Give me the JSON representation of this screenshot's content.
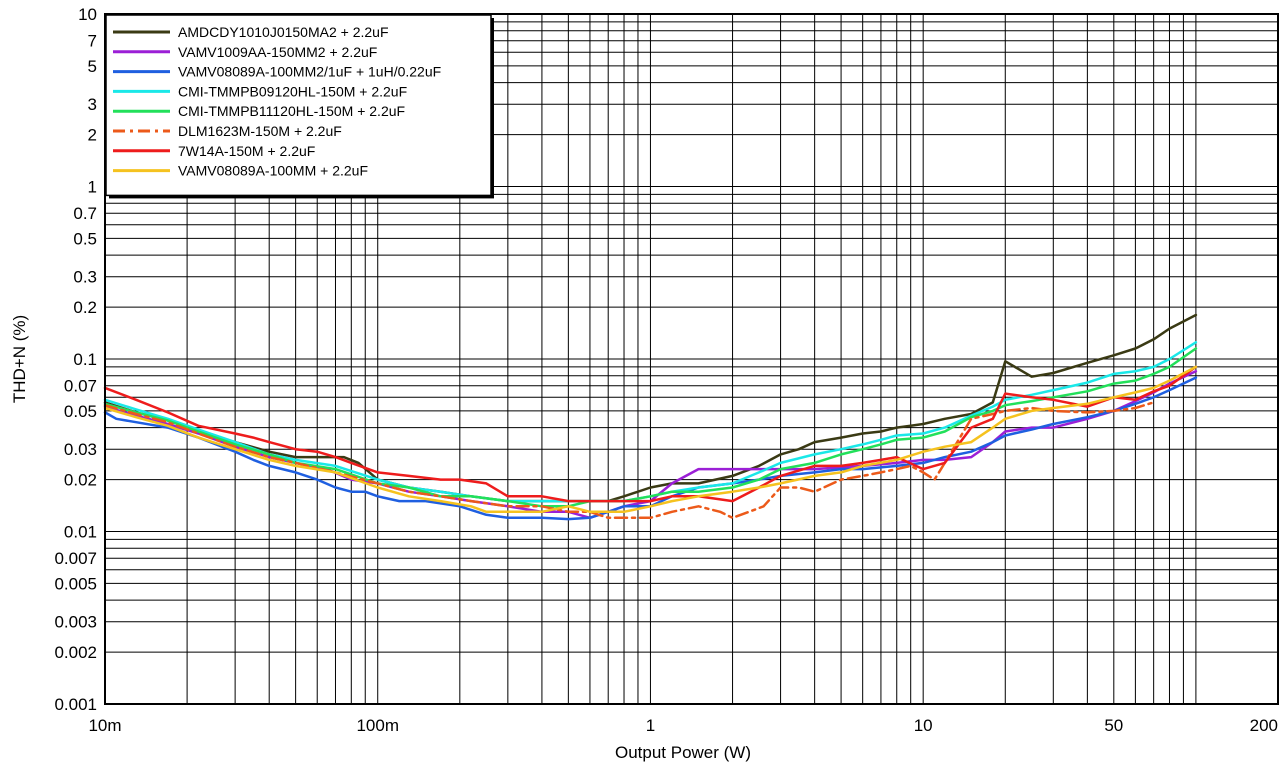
{
  "chart_data": {
    "type": "line",
    "title": "",
    "xlabel": "Output Power (W)",
    "ylabel": "THD+N (%)",
    "x_scale": "log",
    "y_scale": "log",
    "xlim": [
      0.01,
      200
    ],
    "ylim": [
      0.001,
      10
    ],
    "grid": true,
    "legend_position": "top-left",
    "x_ticks": [
      {
        "value": 0.01,
        "label": "10m"
      },
      {
        "value": 0.1,
        "label": "100m"
      },
      {
        "value": 1,
        "label": "1"
      },
      {
        "value": 10,
        "label": "10"
      },
      {
        "value": 50,
        "label": "50"
      },
      {
        "value": 200,
        "label": "200"
      }
    ],
    "y_ticks": [
      {
        "value": 0.001,
        "label": "0.001"
      },
      {
        "value": 0.002,
        "label": "0.002"
      },
      {
        "value": 0.003,
        "label": "0.003"
      },
      {
        "value": 0.005,
        "label": "0.005"
      },
      {
        "value": 0.007,
        "label": "0.007"
      },
      {
        "value": 0.01,
        "label": "0.01"
      },
      {
        "value": 0.02,
        "label": "0.02"
      },
      {
        "value": 0.03,
        "label": "0.03"
      },
      {
        "value": 0.05,
        "label": "0.05"
      },
      {
        "value": 0.07,
        "label": "0.07"
      },
      {
        "value": 0.1,
        "label": "0.1"
      },
      {
        "value": 0.2,
        "label": "0.2"
      },
      {
        "value": 0.3,
        "label": "0.3"
      },
      {
        "value": 0.5,
        "label": "0.5"
      },
      {
        "value": 0.7,
        "label": "0.7"
      },
      {
        "value": 1,
        "label": "1"
      },
      {
        "value": 2,
        "label": "2"
      },
      {
        "value": 3,
        "label": "3"
      },
      {
        "value": 5,
        "label": "5"
      },
      {
        "value": 7,
        "label": "7"
      },
      {
        "value": 10,
        "label": "10"
      }
    ],
    "series": [
      {
        "name": "AMDCDY1010J0150MA2 + 2.2uF",
        "color": "#3a3a14",
        "dash": "solid",
        "x": [
          0.01,
          0.013,
          0.017,
          0.022,
          0.03,
          0.04,
          0.05,
          0.065,
          0.075,
          0.085,
          0.1,
          0.13,
          0.17,
          0.22,
          0.3,
          0.4,
          0.5,
          0.6,
          0.7,
          0.8,
          1.0,
          1.2,
          1.5,
          2.0,
          2.5,
          3.0,
          3.5,
          4.0,
          5.0,
          6.0,
          7.0,
          8.0,
          9.0,
          10,
          12,
          15,
          18,
          20,
          25,
          30,
          40,
          50,
          60,
          70,
          80,
          100
        ],
        "y": [
          0.056,
          0.049,
          0.044,
          0.038,
          0.033,
          0.029,
          0.027,
          0.027,
          0.027,
          0.025,
          0.02,
          0.018,
          0.017,
          0.016,
          0.015,
          0.015,
          0.015,
          0.015,
          0.015,
          0.016,
          0.018,
          0.019,
          0.019,
          0.021,
          0.024,
          0.028,
          0.03,
          0.033,
          0.035,
          0.037,
          0.038,
          0.04,
          0.041,
          0.042,
          0.045,
          0.048,
          0.056,
          0.097,
          0.079,
          0.083,
          0.095,
          0.105,
          0.115,
          0.13,
          0.15,
          0.18
        ]
      },
      {
        "name": "VAMV1009AA-150MM2 + 2.2uF",
        "color": "#9b1fd6",
        "dash": "solid",
        "x": [
          0.01,
          0.013,
          0.017,
          0.022,
          0.03,
          0.04,
          0.05,
          0.065,
          0.08,
          0.1,
          0.13,
          0.17,
          0.22,
          0.3,
          0.4,
          0.5,
          0.6,
          0.7,
          0.8,
          1.0,
          1.2,
          1.5,
          2.0,
          3.0,
          4.0,
          6.0,
          8.0,
          10,
          12,
          15,
          18,
          20,
          25,
          30,
          40,
          50,
          60,
          70,
          80,
          100
        ],
        "y": [
          0.053,
          0.047,
          0.042,
          0.037,
          0.031,
          0.027,
          0.025,
          0.023,
          0.02,
          0.019,
          0.017,
          0.016,
          0.015,
          0.014,
          0.013,
          0.013,
          0.012,
          0.013,
          0.014,
          0.015,
          0.019,
          0.023,
          0.023,
          0.023,
          0.023,
          0.024,
          0.025,
          0.026,
          0.026,
          0.027,
          0.033,
          0.038,
          0.04,
          0.04,
          0.045,
          0.05,
          0.057,
          0.064,
          0.072,
          0.085
        ]
      },
      {
        "name": "VAMV08089A-100MM2/1uF + 1uH/0.22uF",
        "color": "#1f5fe0",
        "dash": "solid",
        "x": [
          0.01,
          0.011,
          0.013,
          0.017,
          0.022,
          0.03,
          0.035,
          0.04,
          0.05,
          0.06,
          0.07,
          0.08,
          0.09,
          0.1,
          0.12,
          0.15,
          0.2,
          0.25,
          0.3,
          0.35,
          0.4,
          0.5,
          0.6,
          0.7,
          0.8,
          1.0,
          1.2,
          1.5,
          2.0,
          2.5,
          3.0,
          4.0,
          5.0,
          6.0,
          8.0,
          10,
          12,
          15,
          18,
          20,
          25,
          30,
          40,
          50,
          60,
          70,
          80,
          100
        ],
        "y": [
          0.049,
          0.045,
          0.043,
          0.04,
          0.035,
          0.029,
          0.026,
          0.024,
          0.022,
          0.02,
          0.018,
          0.017,
          0.017,
          0.016,
          0.015,
          0.015,
          0.014,
          0.0125,
          0.012,
          0.012,
          0.012,
          0.0118,
          0.012,
          0.013,
          0.014,
          0.014,
          0.016,
          0.018,
          0.019,
          0.02,
          0.021,
          0.022,
          0.023,
          0.023,
          0.024,
          0.025,
          0.027,
          0.029,
          0.033,
          0.036,
          0.039,
          0.042,
          0.046,
          0.05,
          0.055,
          0.06,
          0.066,
          0.078
        ]
      },
      {
        "name": "CMI-TMMPB09120HL-150M + 2.2uF",
        "color": "#1ae8e8",
        "dash": "solid",
        "x": [
          0.01,
          0.013,
          0.017,
          0.022,
          0.03,
          0.04,
          0.05,
          0.07,
          0.1,
          0.13,
          0.17,
          0.22,
          0.3,
          0.4,
          0.5,
          0.6,
          0.7,
          0.8,
          1.0,
          1.2,
          1.5,
          2.0,
          2.5,
          3.0,
          4.0,
          5.0,
          6.0,
          7.0,
          8.0,
          10,
          12,
          15,
          18,
          20,
          25,
          30,
          40,
          50,
          60,
          70,
          80,
          100
        ],
        "y": [
          0.058,
          0.051,
          0.045,
          0.039,
          0.033,
          0.028,
          0.026,
          0.024,
          0.02,
          0.018,
          0.017,
          0.016,
          0.015,
          0.015,
          0.015,
          0.015,
          0.015,
          0.015,
          0.016,
          0.017,
          0.018,
          0.019,
          0.022,
          0.025,
          0.028,
          0.03,
          0.032,
          0.034,
          0.036,
          0.037,
          0.04,
          0.047,
          0.053,
          0.058,
          0.062,
          0.066,
          0.073,
          0.082,
          0.085,
          0.09,
          0.1,
          0.125
        ]
      },
      {
        "name": "CMI-TMMPB11120HL-150M + 2.2uF",
        "color": "#22e05a",
        "dash": "solid",
        "x": [
          0.01,
          0.013,
          0.017,
          0.022,
          0.03,
          0.04,
          0.05,
          0.07,
          0.1,
          0.13,
          0.17,
          0.22,
          0.3,
          0.4,
          0.5,
          0.6,
          0.7,
          0.8,
          1.0,
          1.2,
          1.5,
          2.0,
          2.5,
          3.0,
          4.0,
          5.0,
          6.0,
          7.0,
          8.0,
          10,
          12,
          15,
          18,
          20,
          25,
          30,
          40,
          50,
          60,
          70,
          80,
          100
        ],
        "y": [
          0.055,
          0.049,
          0.044,
          0.038,
          0.032,
          0.028,
          0.025,
          0.023,
          0.019,
          0.018,
          0.016,
          0.016,
          0.015,
          0.014,
          0.014,
          0.015,
          0.015,
          0.015,
          0.016,
          0.017,
          0.017,
          0.018,
          0.02,
          0.023,
          0.025,
          0.028,
          0.03,
          0.032,
          0.034,
          0.035,
          0.038,
          0.046,
          0.05,
          0.054,
          0.057,
          0.06,
          0.065,
          0.072,
          0.075,
          0.082,
          0.09,
          0.115
        ]
      },
      {
        "name": "DLM1623M-150M + 2.2uF",
        "color": "#ec5a1a",
        "dash": "dashdot",
        "x": [
          0.01,
          0.013,
          0.017,
          0.022,
          0.03,
          0.04,
          0.05,
          0.07,
          0.1,
          0.13,
          0.17,
          0.22,
          0.3,
          0.4,
          0.5,
          0.6,
          0.7,
          0.8,
          1.0,
          1.2,
          1.5,
          1.8,
          2.0,
          2.3,
          2.6,
          3.0,
          3.5,
          4.0,
          5.0,
          6.0,
          7.0,
          8.0,
          9.0,
          10,
          11,
          12,
          15,
          18,
          20,
          25,
          30,
          40,
          50,
          60,
          70
        ],
        "y": [
          0.054,
          0.048,
          0.043,
          0.037,
          0.031,
          0.027,
          0.025,
          0.022,
          0.019,
          0.017,
          0.016,
          0.015,
          0.014,
          0.014,
          0.013,
          0.013,
          0.012,
          0.012,
          0.012,
          0.013,
          0.014,
          0.013,
          0.012,
          0.013,
          0.014,
          0.018,
          0.018,
          0.017,
          0.02,
          0.021,
          0.022,
          0.023,
          0.024,
          0.022,
          0.02,
          0.025,
          0.045,
          0.048,
          0.05,
          0.052,
          0.05,
          0.049,
          0.05,
          0.052,
          0.056
        ]
      },
      {
        "name": "7W14A-150M + 2.2uF",
        "color": "#ee1c1c",
        "dash": "solid",
        "x": [
          0.01,
          0.013,
          0.017,
          0.022,
          0.03,
          0.035,
          0.04,
          0.05,
          0.06,
          0.07,
          0.08,
          0.1,
          0.13,
          0.17,
          0.2,
          0.25,
          0.3,
          0.4,
          0.5,
          0.6,
          0.7,
          0.8,
          1.0,
          1.2,
          1.5,
          2.0,
          2.5,
          3.0,
          4.0,
          5.0,
          6.0,
          7.0,
          8.0,
          10,
          12,
          15,
          18,
          20,
          25,
          30,
          40,
          50,
          60,
          70,
          80,
          100
        ],
        "y": [
          0.068,
          0.058,
          0.049,
          0.041,
          0.037,
          0.035,
          0.033,
          0.03,
          0.029,
          0.027,
          0.025,
          0.022,
          0.021,
          0.02,
          0.02,
          0.019,
          0.016,
          0.016,
          0.015,
          0.015,
          0.015,
          0.015,
          0.015,
          0.016,
          0.016,
          0.015,
          0.018,
          0.021,
          0.024,
          0.024,
          0.025,
          0.026,
          0.027,
          0.023,
          0.025,
          0.04,
          0.045,
          0.063,
          0.06,
          0.058,
          0.053,
          0.06,
          0.058,
          0.065,
          0.07,
          0.09
        ]
      },
      {
        "name": "VAMV08089A-100MM + 2.2uF",
        "color": "#f5c21f",
        "dash": "solid",
        "x": [
          0.01,
          0.013,
          0.017,
          0.022,
          0.03,
          0.04,
          0.05,
          0.07,
          0.1,
          0.13,
          0.17,
          0.22,
          0.25,
          0.3,
          0.4,
          0.5,
          0.6,
          0.7,
          0.8,
          1.0,
          1.2,
          1.5,
          2.0,
          2.5,
          3.0,
          4.0,
          5.0,
          6.0,
          8.0,
          10,
          12,
          15,
          18,
          20,
          25,
          30,
          40,
          50,
          60,
          70,
          80,
          100
        ],
        "y": [
          0.052,
          0.046,
          0.041,
          0.035,
          0.03,
          0.026,
          0.024,
          0.022,
          0.018,
          0.016,
          0.015,
          0.014,
          0.013,
          0.013,
          0.013,
          0.014,
          0.013,
          0.013,
          0.013,
          0.014,
          0.015,
          0.016,
          0.017,
          0.018,
          0.019,
          0.021,
          0.022,
          0.024,
          0.026,
          0.029,
          0.031,
          0.033,
          0.04,
          0.045,
          0.05,
          0.052,
          0.055,
          0.06,
          0.064,
          0.068,
          0.075,
          0.09
        ]
      }
    ]
  }
}
